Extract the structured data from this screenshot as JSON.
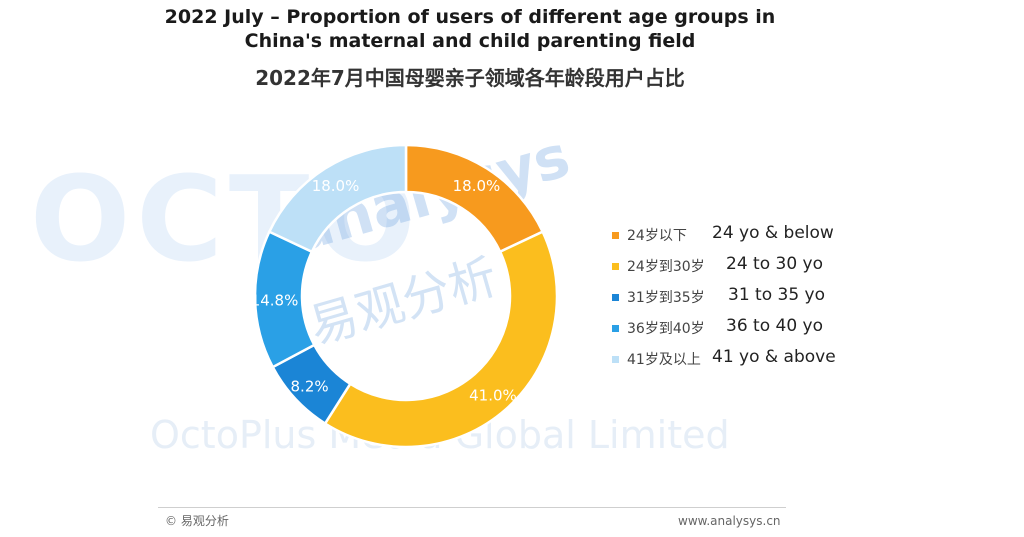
{
  "title_en": "2022 July – Proportion of users of different age groups in China's maternal and child parenting field",
  "title_cn": "2022年7月中国母婴亲子领域各年龄段用户占比",
  "watermark": {
    "brand": "OCTO",
    "company": "OctoPlus Media Global Limited",
    "analysys": "analysys",
    "cn": "易观分析"
  },
  "chart_data": {
    "type": "pie",
    "donut": true,
    "categories": [
      "24岁以下",
      "24岁到30岁",
      "31岁到35岁",
      "36岁到40岁",
      "41岁及以上"
    ],
    "categories_en": [
      "24 yo & below",
      "24 to 30 yo",
      "31 to 35 yo",
      "36 to 40 yo",
      "41 yo & above"
    ],
    "values": [
      18.0,
      41.0,
      8.2,
      14.8,
      18.0
    ],
    "labels": [
      "18.0%",
      "41.0%",
      "8.2%",
      "14.8%",
      "18.0%"
    ],
    "colors": [
      "#f79a1e",
      "#fbbe1e",
      "#1b85d6",
      "#2aa0e6",
      "#bde0f7"
    ],
    "legend_position": "right"
  },
  "footer": {
    "left": "© 易观分析",
    "right": "www.analysys.cn"
  }
}
